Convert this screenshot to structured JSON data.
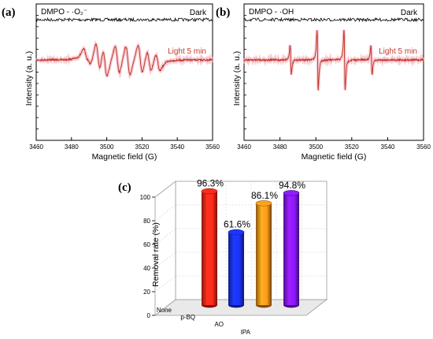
{
  "chart_data": [
    {
      "panel": "(a)",
      "type": "line",
      "title": "DMPO - ·O₂⁻",
      "xlabel": "Magnetic field (G)",
      "ylabel": "Intensity (a. u.)",
      "xlim": [
        3460,
        3560
      ],
      "xticks": [
        3460,
        3480,
        3500,
        3520,
        3540,
        3560
      ],
      "series": [
        {
          "name": "Dark",
          "color": "#000000",
          "description": "flat noise baseline"
        },
        {
          "name": "Light 5 min",
          "color": "#c0392b",
          "peaks_x": [
            3488,
            3490,
            3495,
            3499,
            3506,
            3512,
            3519,
            3524,
            3529
          ]
        }
      ]
    },
    {
      "panel": "(b)",
      "type": "line",
      "title": "DMPO - ·OH",
      "xlabel": "Magnetic field (G)",
      "ylabel": "Intensity (a. u.)",
      "xlim": [
        3460,
        3560
      ],
      "xticks": [
        3460,
        3480,
        3500,
        3520,
        3540,
        3560
      ],
      "series": [
        {
          "name": "Dark",
          "color": "#000000",
          "description": "flat noise baseline"
        },
        {
          "name": "Light 5 min",
          "color": "#c0392b",
          "lines_x": [
            3486,
            3501,
            3516,
            3531
          ],
          "relative_intensity": [
            1,
            2,
            2,
            1
          ]
        }
      ]
    },
    {
      "panel": "(c)",
      "type": "bar",
      "ylabel": "Removal rate (%)",
      "ylim": [
        0,
        100
      ],
      "yticks": [
        0,
        20,
        40,
        60,
        80,
        100
      ],
      "categories": [
        "None",
        "p-BQ",
        "AO",
        "IPA"
      ],
      "values": [
        96.3,
        61.6,
        86.1,
        94.8
      ],
      "labels": [
        "96.3%",
        "61.6%",
        "86.1%",
        "94.8%"
      ],
      "colors": [
        "#ff2a1a",
        "#1a33ff",
        "#ff9a1a",
        "#8a1aff"
      ]
    }
  ]
}
